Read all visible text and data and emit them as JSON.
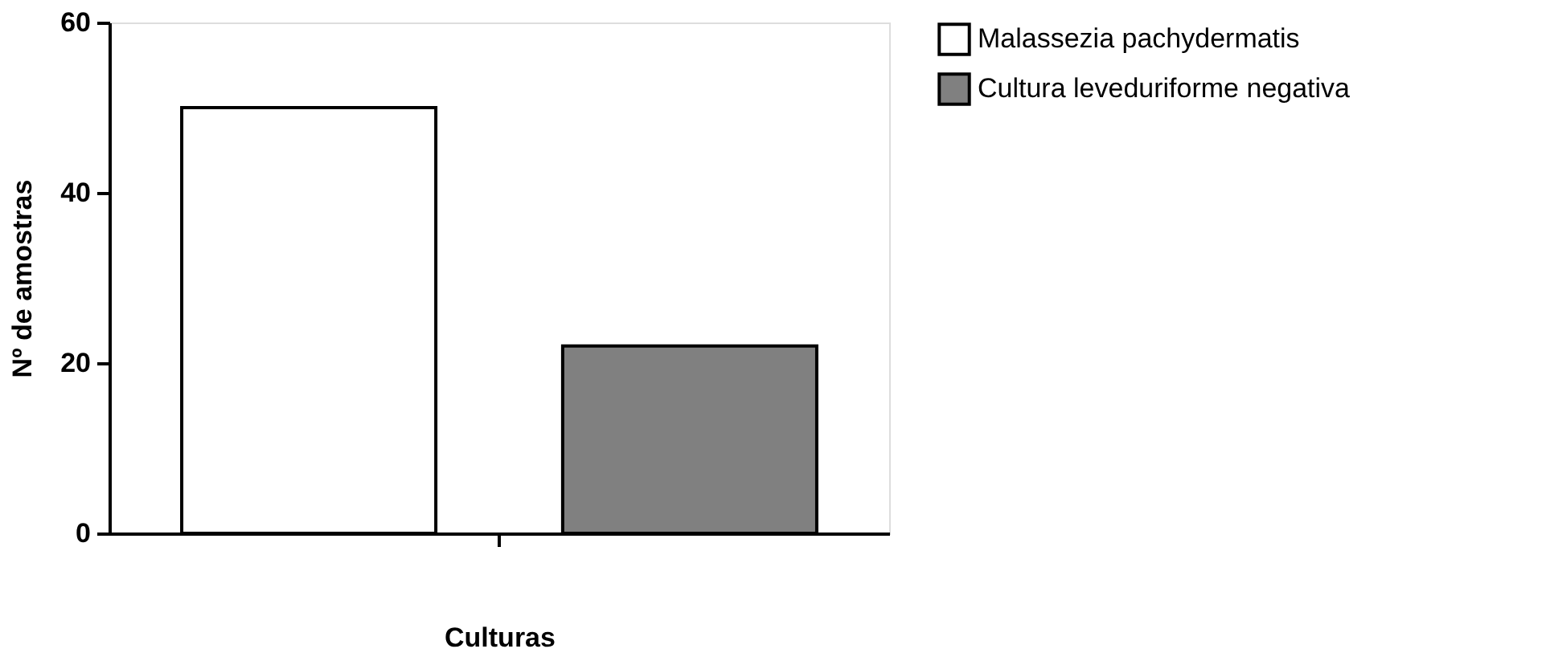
{
  "chart_data": {
    "type": "bar",
    "xlabel": "Culturas",
    "ylabel": "Nº  de amostras",
    "categories": [
      null
    ],
    "series": [
      {
        "name": "Malassezia pachydermatis",
        "color": "#ffffff",
        "values": [
          50
        ]
      },
      {
        "name": "Cultura leveduriforme negativa",
        "color": "#808080",
        "values": [
          22
        ]
      }
    ],
    "ylim": [
      0,
      60
    ],
    "yticks": [
      0,
      20,
      40,
      60
    ],
    "grid": false,
    "legend": "top right"
  }
}
